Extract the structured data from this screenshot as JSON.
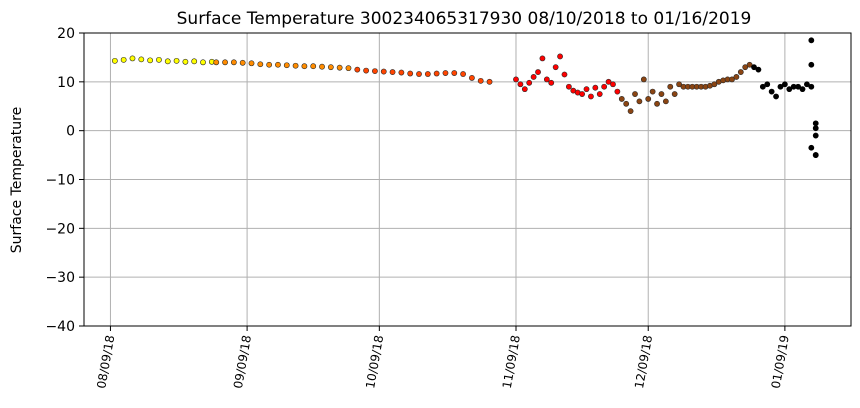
{
  "chart_data": {
    "type": "scatter",
    "title": "Surface Temperature 300234065317930  08/10/2018 to 01/16/2019",
    "xlabel": "",
    "ylabel": "Surface Temperature",
    "x_type": "date",
    "xlim": [
      "2018-08-03",
      "2019-01-24"
    ],
    "ylim": [
      -40,
      20
    ],
    "grid": true,
    "y_ticks": [
      20,
      10,
      0,
      -10,
      -20,
      -30,
      -40
    ],
    "y_tick_labels": [
      "20",
      "10",
      "0",
      "−10",
      "−20",
      "−30",
      "−40"
    ],
    "x_ticks": [
      "2018-08-09",
      "2018-09-09",
      "2018-10-09",
      "2018-11-09",
      "2018-12-09",
      "2019-01-09"
    ],
    "x_tick_labels": [
      "08/09/18",
      "09/09/18",
      "10/09/18",
      "11/09/18",
      "12/09/18",
      "01/09/19"
    ],
    "series": [
      {
        "color": "#ffff00",
        "x": [
          "2018-08-10",
          "2018-08-12",
          "2018-08-14",
          "2018-08-16",
          "2018-08-18",
          "2018-08-20",
          "2018-08-22",
          "2018-08-24",
          "2018-08-26",
          "2018-08-28",
          "2018-08-30",
          "2018-09-01"
        ],
        "y": [
          14.3,
          14.5,
          14.8,
          14.6,
          14.4,
          14.5,
          14.2,
          14.3,
          14.1,
          14.2,
          14.0,
          14.1
        ]
      },
      {
        "color": "#ff8c00",
        "x": [
          "2018-09-02",
          "2018-09-04",
          "2018-09-06",
          "2018-09-08",
          "2018-09-10",
          "2018-09-12",
          "2018-09-14",
          "2018-09-16",
          "2018-09-18",
          "2018-09-20",
          "2018-09-22",
          "2018-09-24",
          "2018-09-26",
          "2018-09-28",
          "2018-09-30",
          "2018-10-02"
        ],
        "y": [
          14.0,
          14.0,
          14.0,
          13.9,
          13.8,
          13.6,
          13.5,
          13.5,
          13.4,
          13.3,
          13.2,
          13.2,
          13.1,
          13.0,
          12.9,
          12.8
        ]
      },
      {
        "color": "#ff4500",
        "x": [
          "2018-10-04",
          "2018-10-06",
          "2018-10-08",
          "2018-10-10",
          "2018-10-12",
          "2018-10-14",
          "2018-10-16",
          "2018-10-18",
          "2018-10-20",
          "2018-10-22",
          "2018-10-24",
          "2018-10-26",
          "2018-10-28",
          "2018-10-30",
          "2018-11-01",
          "2018-11-03"
        ],
        "y": [
          12.5,
          12.3,
          12.2,
          12.1,
          12.0,
          11.9,
          11.7,
          11.6,
          11.6,
          11.7,
          11.8,
          11.8,
          11.6,
          10.8,
          10.2,
          10.0
        ]
      },
      {
        "color": "#ff0000",
        "x": [
          "2018-11-09",
          "2018-11-10",
          "2018-11-11",
          "2018-11-12",
          "2018-11-13",
          "2018-11-14",
          "2018-11-15",
          "2018-11-16",
          "2018-11-17",
          "2018-11-18",
          "2018-11-19",
          "2018-11-20",
          "2018-11-21",
          "2018-11-22",
          "2018-11-23",
          "2018-11-24",
          "2018-11-25",
          "2018-11-26",
          "2018-11-27",
          "2018-11-28",
          "2018-11-29",
          "2018-11-30",
          "2018-12-01",
          "2018-12-02"
        ],
        "y": [
          10.5,
          9.5,
          8.5,
          9.8,
          11.0,
          12.0,
          14.8,
          10.5,
          9.8,
          13.0,
          15.2,
          11.5,
          9.0,
          8.2,
          7.8,
          7.5,
          8.5,
          7.0,
          8.8,
          7.5,
          9.0,
          10.0,
          9.5,
          8.0
        ]
      },
      {
        "color": "#8b4513",
        "x": [
          "2018-12-03",
          "2018-12-04",
          "2018-12-05",
          "2018-12-06",
          "2018-12-07",
          "2018-12-08",
          "2018-12-09",
          "2018-12-10",
          "2018-12-11",
          "2018-12-12",
          "2018-12-13",
          "2018-12-14",
          "2018-12-15",
          "2018-12-16",
          "2018-12-17",
          "2018-12-18",
          "2018-12-19",
          "2018-12-20",
          "2018-12-21",
          "2018-12-22",
          "2018-12-23",
          "2018-12-24",
          "2018-12-25",
          "2018-12-26",
          "2018-12-27",
          "2018-12-28",
          "2018-12-29",
          "2018-12-30",
          "2018-12-31",
          "2019-01-01"
        ],
        "y": [
          6.5,
          5.5,
          4.0,
          7.5,
          6.0,
          10.5,
          6.5,
          8.0,
          5.5,
          7.5,
          6.0,
          9.0,
          7.5,
          9.5,
          9.0,
          9.0,
          9.0,
          9.0,
          9.0,
          9.0,
          9.2,
          9.5,
          10.0,
          10.3,
          10.5,
          10.5,
          11.0,
          12.0,
          13.0,
          13.5
        ]
      },
      {
        "color": "#000000",
        "x": [
          "2019-01-02",
          "2019-01-03",
          "2019-01-04",
          "2019-01-05",
          "2019-01-06",
          "2019-01-07",
          "2019-01-08",
          "2019-01-09",
          "2019-01-10",
          "2019-01-11",
          "2019-01-12",
          "2019-01-13",
          "2019-01-14",
          "2019-01-15",
          "2019-01-15",
          "2019-01-15",
          "2019-01-15",
          "2019-01-16",
          "2019-01-16",
          "2019-01-16",
          "2019-01-16",
          "2019-01-16"
        ],
        "y": [
          13.0,
          12.5,
          9.0,
          9.5,
          8.0,
          7.0,
          9.0,
          9.5,
          8.5,
          9.0,
          9.0,
          8.5,
          9.5,
          18.5,
          13.5,
          9.0,
          -3.5,
          -1.0,
          0.5,
          1.5,
          -5.0,
          -5.0
        ]
      }
    ]
  }
}
